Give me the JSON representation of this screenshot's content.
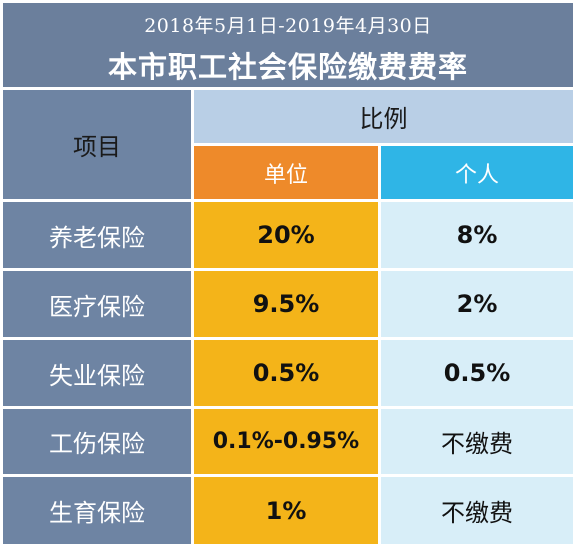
{
  "header": {
    "subtitle": "2018年5月1日-2019年4月30日",
    "title": "本市职工社会保险缴费费率"
  },
  "table": {
    "col_item_label": "项目",
    "col_ratio_label": "比例",
    "col_unit_label": "单位",
    "col_person_label": "个人",
    "rows": [
      {
        "item": "养老保险",
        "unit": "20%",
        "person": "8%"
      },
      {
        "item": "医疗保险",
        "unit": "9.5%",
        "person": "2%"
      },
      {
        "item": "失业保险",
        "unit": "0.5%",
        "person": "0.5%"
      },
      {
        "item": "工伤保险",
        "unit": "0.1%-0.95%",
        "person": "不缴费"
      },
      {
        "item": "生育保险",
        "unit": "1%",
        "person": "不缴费"
      }
    ]
  },
  "colors": {
    "header_bg": "#6b7f9c",
    "item_bg": "#6e84a3",
    "unit_head": "#ee8a2a",
    "person_head": "#2fb5e6",
    "unit_cell": "#f4b419",
    "person_cell": "#d8eef8"
  }
}
